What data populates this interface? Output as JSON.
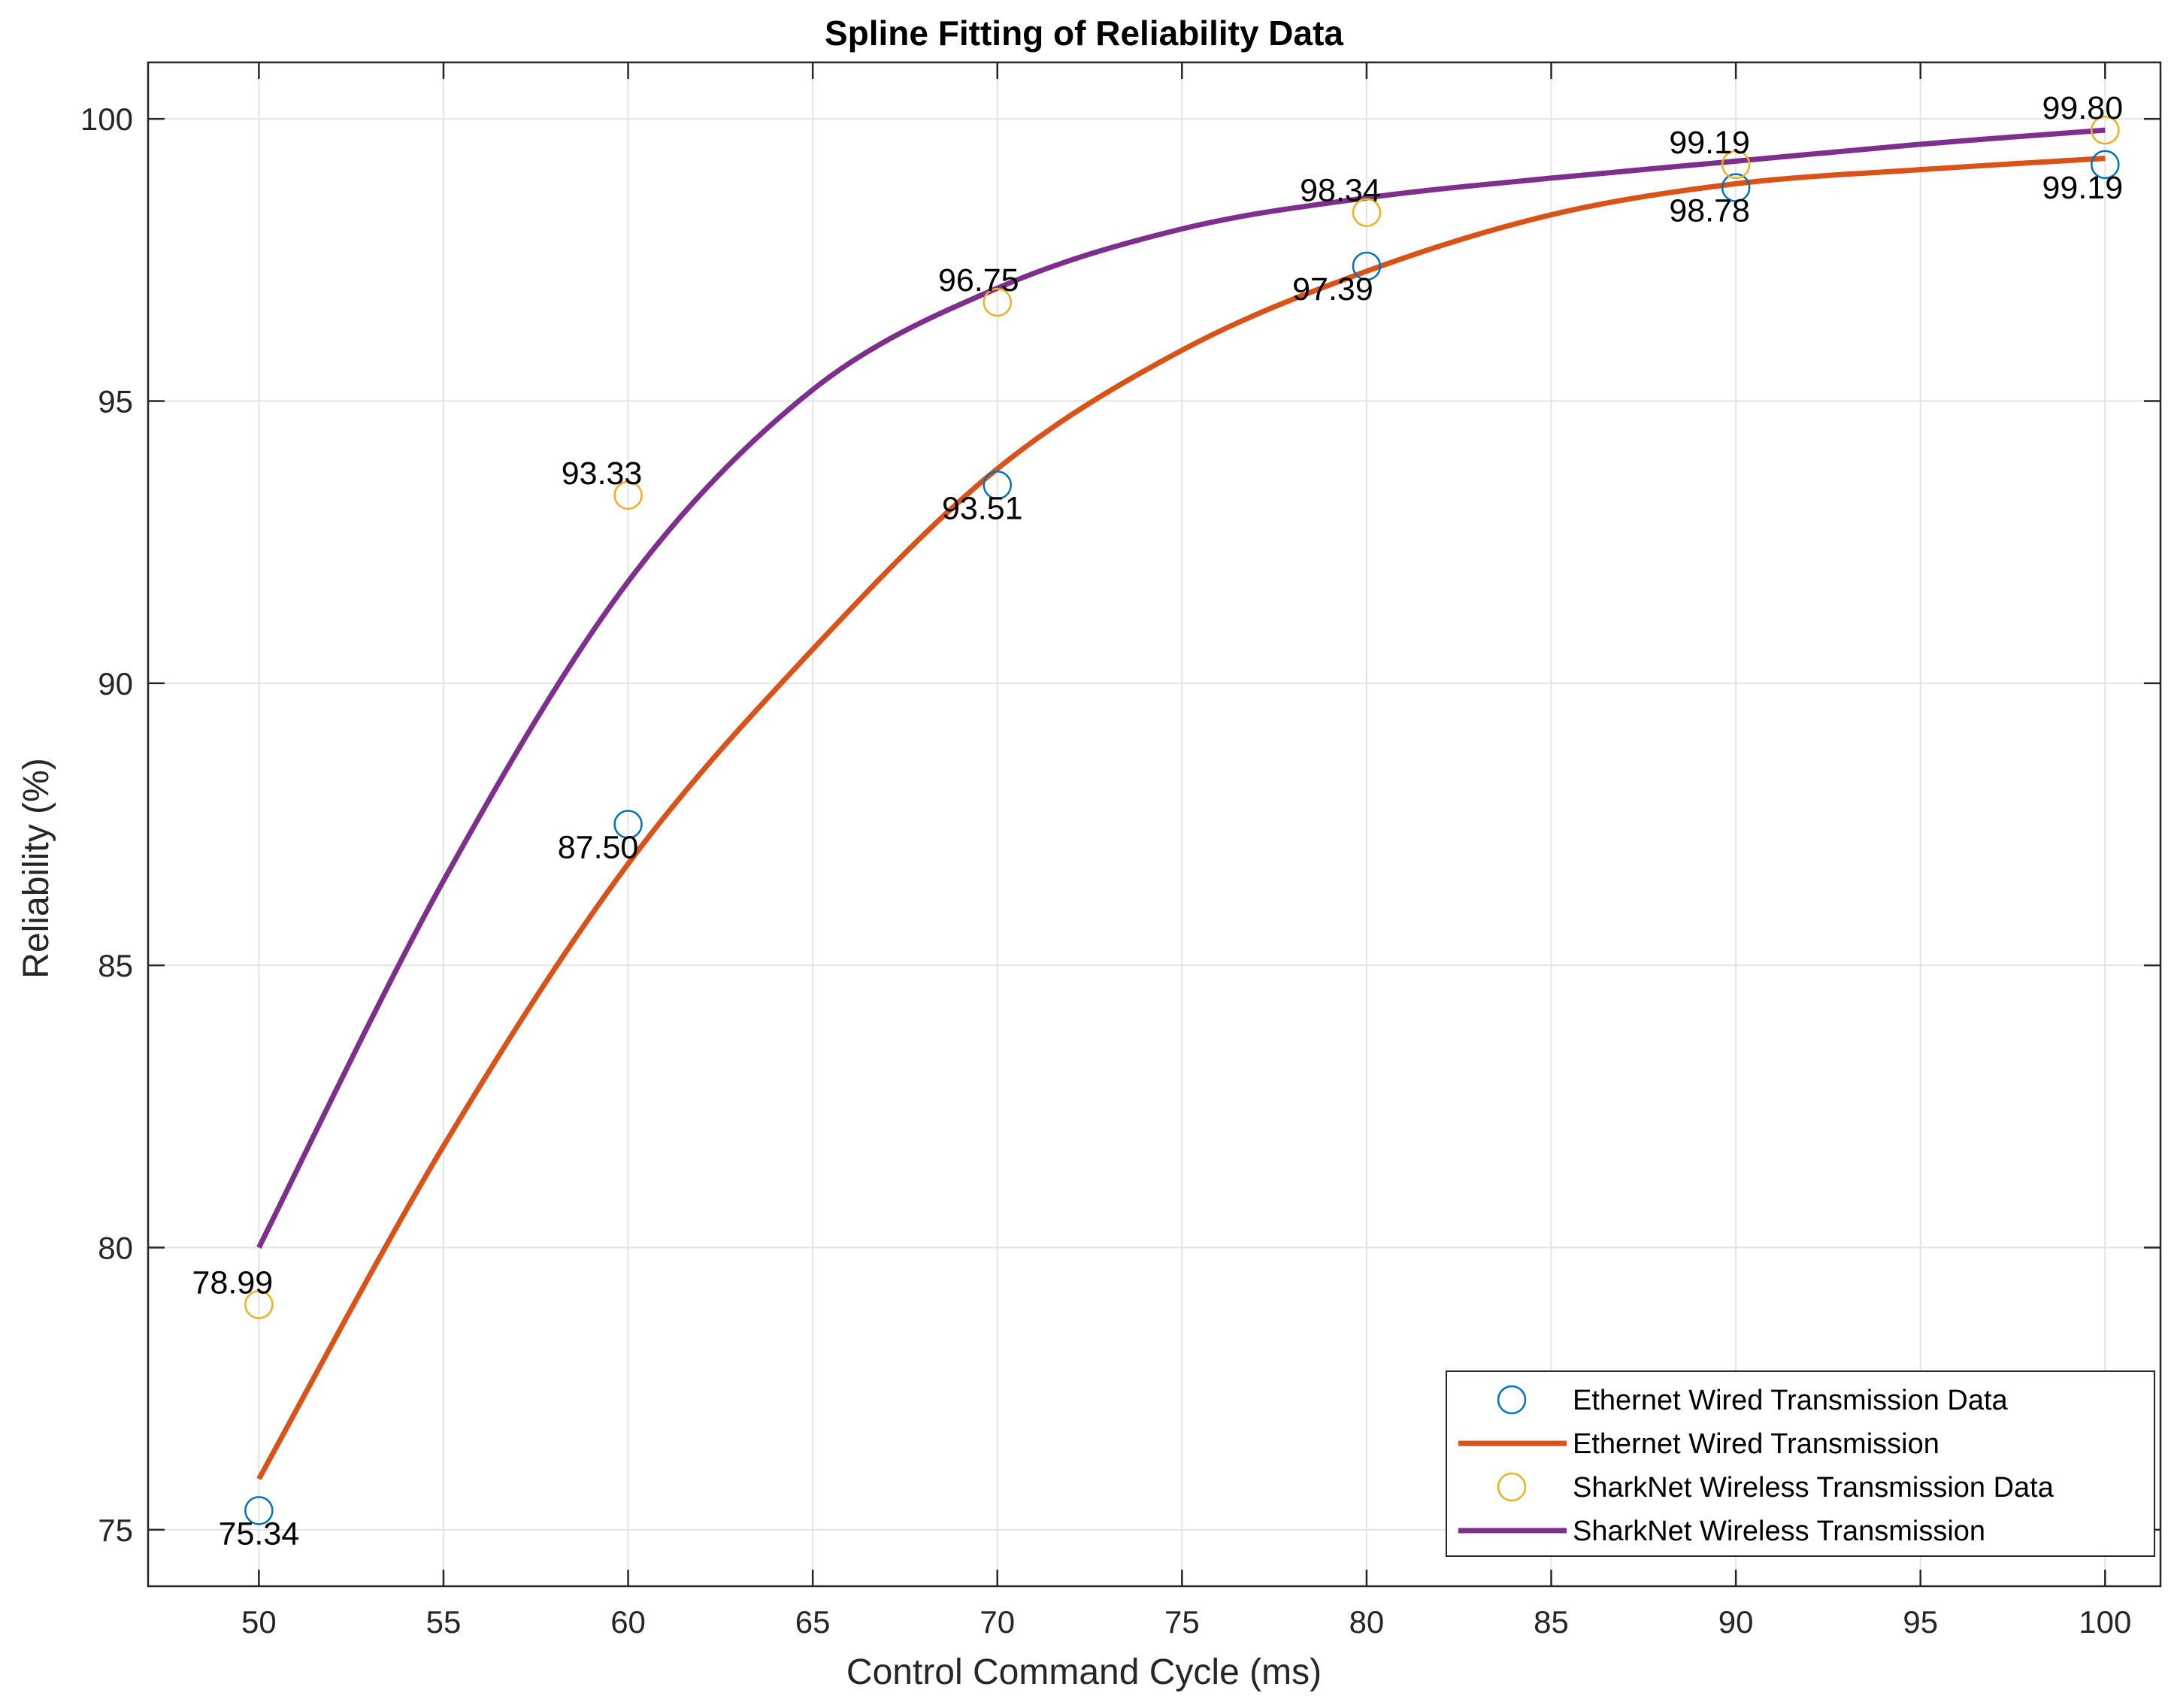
{
  "chart_data": {
    "type": "line",
    "title": "Spline Fitting of Reliability Data",
    "xlabel": "Control Command Cycle (ms)",
    "ylabel": "Reliability (%)",
    "xlim": [
      47,
      101.5
    ],
    "ylim": [
      74,
      101
    ],
    "xticks": [
      50,
      55,
      60,
      65,
      70,
      75,
      80,
      85,
      90,
      95,
      100
    ],
    "yticks": [
      75,
      80,
      85,
      90,
      95,
      100
    ],
    "grid": true,
    "legend_position": "bottom-right",
    "series": [
      {
        "name": "Ethernet Wired Transmission Data",
        "kind": "markers",
        "color": "#0072BD",
        "x": [
          50,
          60,
          70,
          80,
          90,
          100
        ],
        "y": [
          75.34,
          87.5,
          93.51,
          97.39,
          98.78,
          99.19
        ],
        "labels": [
          "75.34",
          "87.50",
          "93.51",
          "97.39",
          "98.78",
          "99.19"
        ]
      },
      {
        "name": "Ethernet Wired Transmission",
        "kind": "line",
        "color": "#D95319",
        "x": [
          50,
          55,
          60,
          65,
          70,
          75,
          80,
          85,
          90,
          95,
          100
        ],
        "y": [
          75.9,
          81.8,
          86.8,
          90.6,
          93.8,
          95.9,
          97.3,
          98.3,
          98.85,
          99.1,
          99.3
        ]
      },
      {
        "name": "SharkNet Wireless Transmission Data",
        "kind": "markers",
        "color": "#EDB120",
        "x": [
          50,
          60,
          70,
          80,
          90,
          100
        ],
        "y": [
          78.99,
          93.33,
          96.75,
          98.34,
          99.19,
          99.8
        ],
        "labels": [
          "78.99",
          "93.33",
          "96.75",
          "98.34",
          "99.19",
          "99.80"
        ]
      },
      {
        "name": "SharkNet Wireless Transmission",
        "kind": "line",
        "color": "#7E2F8E",
        "x": [
          50,
          55,
          60,
          65,
          70,
          75,
          80,
          85,
          90,
          95,
          100
        ],
        "y": [
          80.0,
          86.5,
          91.8,
          95.2,
          97.0,
          98.05,
          98.6,
          98.95,
          99.25,
          99.55,
          99.8
        ]
      }
    ]
  }
}
